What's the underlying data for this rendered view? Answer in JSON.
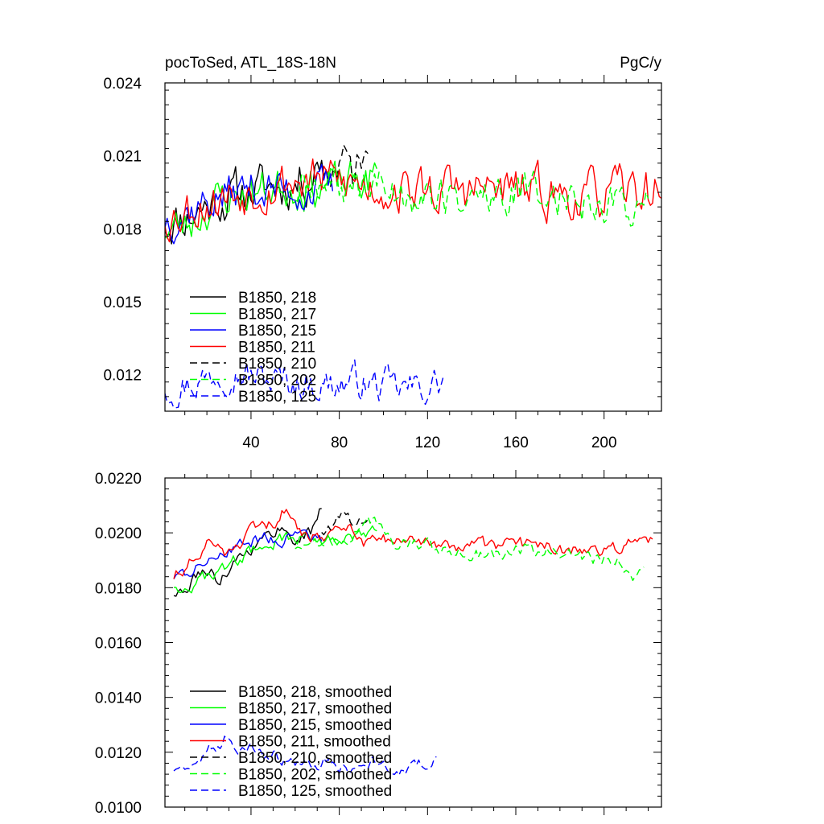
{
  "header": {
    "title_left": "pocToSed, ATL_18S-18N",
    "title_right": "PgC/y"
  },
  "chart_data": [
    {
      "type": "line",
      "title": "pocToSed, ATL_18S-18N",
      "units_label": "PgC/y",
      "xlim": [
        1,
        226
      ],
      "ylim": [
        0.0105,
        0.024
      ],
      "x_ticks": [
        40,
        80,
        120,
        160,
        200
      ],
      "x_tick_labels": [
        "40",
        "80",
        "120",
        "160",
        "200"
      ],
      "y_ticks": [
        0.012,
        0.015,
        0.018,
        0.021,
        0.024
      ],
      "y_tick_labels": [
        "0.012",
        "0.015",
        "0.018",
        "0.021",
        "0.024"
      ],
      "grid": false,
      "legend_position": "bottom-left",
      "series": [
        {
          "name": "B1850, 218",
          "color": "#000000",
          "dash": "solid",
          "x_start": 1,
          "x_end": 75,
          "anchors": [
            [
              1,
              0.0183
            ],
            [
              10,
              0.0185
            ],
            [
              25,
              0.0192
            ],
            [
              40,
              0.0196
            ],
            [
              55,
              0.0198
            ],
            [
              65,
              0.02
            ],
            [
              72,
              0.021
            ],
            [
              75,
              0.0203
            ]
          ],
          "noise": 0.0008,
          "seed": 11
        },
        {
          "name": "B1850, 217",
          "color": "#00ff00",
          "dash": "solid",
          "x_start": 1,
          "x_end": 97,
          "anchors": [
            [
              1,
              0.018
            ],
            [
              10,
              0.0181
            ],
            [
              25,
              0.0192
            ],
            [
              40,
              0.0195
            ],
            [
              55,
              0.0198
            ],
            [
              70,
              0.0197
            ],
            [
              85,
              0.0199
            ],
            [
              97,
              0.0201
            ]
          ],
          "noise": 0.0007,
          "seed": 23
        },
        {
          "name": "B1850, 215",
          "color": "#0000ff",
          "dash": "solid",
          "x_start": 1,
          "x_end": 77,
          "anchors": [
            [
              1,
              0.0184
            ],
            [
              10,
              0.0187
            ],
            [
              25,
              0.0193
            ],
            [
              40,
              0.0197
            ],
            [
              55,
              0.0196
            ],
            [
              70,
              0.0196
            ],
            [
              77,
              0.0197
            ]
          ],
          "noise": 0.0007,
          "seed": 37
        },
        {
          "name": "B1850, 211",
          "color": "#ff0000",
          "dash": "solid",
          "x_start": 1,
          "x_end": 226,
          "anchors": [
            [
              1,
              0.0185
            ],
            [
              15,
              0.019
            ],
            [
              30,
              0.0194
            ],
            [
              45,
              0.0198
            ],
            [
              60,
              0.02
            ],
            [
              75,
              0.02
            ],
            [
              90,
              0.0198
            ],
            [
              110,
              0.0196
            ],
            [
              130,
              0.0196
            ],
            [
              150,
              0.0196
            ],
            [
              170,
              0.0195
            ],
            [
              190,
              0.0193
            ],
            [
              210,
              0.0195
            ],
            [
              226,
              0.0196
            ]
          ],
          "noise": 0.0008,
          "seed": 53
        },
        {
          "name": "B1850, 210",
          "color": "#000000",
          "dash": "dashed",
          "x_start": 76,
          "x_end": 93,
          "anchors": [
            [
              76,
              0.0201
            ],
            [
              80,
              0.0206
            ],
            [
              86,
              0.0203
            ],
            [
              93,
              0.0212
            ]
          ],
          "noise": 0.0008,
          "seed": 71
        },
        {
          "name": "B1850, 202",
          "color": "#00ff00",
          "dash": "dashed",
          "x_start": 60,
          "x_end": 220,
          "anchors": [
            [
              60,
              0.0195
            ],
            [
              75,
              0.0197
            ],
            [
              90,
              0.0198
            ],
            [
              110,
              0.0195
            ],
            [
              130,
              0.0192
            ],
            [
              150,
              0.0193
            ],
            [
              170,
              0.0195
            ],
            [
              190,
              0.0192
            ],
            [
              210,
              0.019
            ],
            [
              220,
              0.0191
            ]
          ],
          "noise": 0.0007,
          "seed": 89
        },
        {
          "name": "B1850, 125",
          "color": "#0000ff",
          "dash": "dashed",
          "x_start": 1,
          "x_end": 127,
          "anchors": [
            [
              1,
              0.0115
            ],
            [
              15,
              0.0117
            ],
            [
              30,
              0.0123
            ],
            [
              45,
              0.0118
            ],
            [
              60,
              0.0117
            ],
            [
              75,
              0.0116
            ],
            [
              90,
              0.0117
            ],
            [
              105,
              0.0114
            ],
            [
              115,
              0.0114
            ],
            [
              127,
              0.0117
            ]
          ],
          "noise": 0.0006,
          "seed": 97
        }
      ]
    },
    {
      "type": "line",
      "xlim": [
        1,
        226
      ],
      "ylim": [
        0.01,
        0.022
      ],
      "x_ticks": [
        40,
        80,
        120,
        160,
        200
      ],
      "x_tick_labels": [],
      "y_ticks": [
        0.01,
        0.012,
        0.014,
        0.016,
        0.018,
        0.02,
        0.022
      ],
      "y_tick_labels": [
        "0.0100",
        "0.0120",
        "0.0140",
        "0.0160",
        "0.0180",
        "0.0200",
        "0.0220"
      ],
      "grid": false,
      "legend_position": "bottom-left",
      "series": [
        {
          "name": "B1850, 218, smoothed",
          "color": "#000000",
          "dash": "solid",
          "x_start": 5,
          "x_end": 72,
          "anchors": [
            [
              5,
              0.0178
            ],
            [
              10,
              0.0178
            ],
            [
              18,
              0.0187
            ],
            [
              25,
              0.0183
            ],
            [
              35,
              0.0192
            ],
            [
              45,
              0.0197
            ],
            [
              52,
              0.0202
            ],
            [
              60,
              0.0198
            ],
            [
              67,
              0.02
            ],
            [
              72,
              0.0209
            ]
          ],
          "noise": 0.0002,
          "seed": 111
        },
        {
          "name": "B1850, 217, smoothed",
          "color": "#00ff00",
          "dash": "solid",
          "x_start": 5,
          "x_end": 97,
          "anchors": [
            [
              5,
              0.0181
            ],
            [
              12,
              0.018
            ],
            [
              25,
              0.0186
            ],
            [
              40,
              0.0193
            ],
            [
              55,
              0.0198
            ],
            [
              70,
              0.0198
            ],
            [
              80,
              0.0198
            ],
            [
              90,
              0.0198
            ],
            [
              97,
              0.0201
            ]
          ],
          "noise": 0.0002,
          "seed": 123
        },
        {
          "name": "B1850, 215, smoothed",
          "color": "#0000ff",
          "dash": "solid",
          "x_start": 5,
          "x_end": 72,
          "anchors": [
            [
              5,
              0.0184
            ],
            [
              15,
              0.0187
            ],
            [
              25,
              0.0193
            ],
            [
              35,
              0.0196
            ],
            [
              45,
              0.0198
            ],
            [
              55,
              0.0198
            ],
            [
              65,
              0.0198
            ],
            [
              72,
              0.0197
            ]
          ],
          "noise": 0.0002,
          "seed": 137
        },
        {
          "name": "B1850, 211, smoothed",
          "color": "#ff0000",
          "dash": "solid",
          "x_start": 5,
          "x_end": 222,
          "anchors": [
            [
              5,
              0.0184
            ],
            [
              12,
              0.0189
            ],
            [
              20,
              0.0196
            ],
            [
              30,
              0.0192
            ],
            [
              40,
              0.02
            ],
            [
              50,
              0.0204
            ],
            [
              55,
              0.0208
            ],
            [
              65,
              0.0198
            ],
            [
              75,
              0.02
            ],
            [
              83,
              0.0203
            ],
            [
              90,
              0.0196
            ],
            [
              100,
              0.0197
            ],
            [
              120,
              0.0196
            ],
            [
              140,
              0.0195
            ],
            [
              160,
              0.0196
            ],
            [
              180,
              0.0194
            ],
            [
              200,
              0.0193
            ],
            [
              210,
              0.0196
            ],
            [
              222,
              0.0198
            ]
          ],
          "noise": 0.0002,
          "seed": 151
        },
        {
          "name": "B1850, 210, smoothed",
          "color": "#000000",
          "dash": "dashed",
          "x_start": 72,
          "x_end": 93,
          "anchors": [
            [
              72,
              0.0201
            ],
            [
              78,
              0.0204
            ],
            [
              83,
              0.0206
            ],
            [
              88,
              0.0203
            ],
            [
              93,
              0.0207
            ]
          ],
          "noise": 0.0002,
          "seed": 163
        },
        {
          "name": "B1850, 202, smoothed",
          "color": "#00ff00",
          "dash": "dashed",
          "x_start": 60,
          "x_end": 218,
          "anchors": [
            [
              60,
              0.0195
            ],
            [
              75,
              0.0197
            ],
            [
              85,
              0.0199
            ],
            [
              95,
              0.0204
            ],
            [
              105,
              0.0197
            ],
            [
              120,
              0.0195
            ],
            [
              140,
              0.0192
            ],
            [
              160,
              0.0194
            ],
            [
              180,
              0.0193
            ],
            [
              195,
              0.019
            ],
            [
              205,
              0.0191
            ],
            [
              213,
              0.0185
            ],
            [
              218,
              0.0188
            ]
          ],
          "noise": 0.0002,
          "seed": 179
        },
        {
          "name": "B1850, 125, smoothed",
          "color": "#0000ff",
          "dash": "dashed",
          "x_start": 5,
          "x_end": 124,
          "anchors": [
            [
              5,
              0.0114
            ],
            [
              12,
              0.0113
            ],
            [
              20,
              0.012
            ],
            [
              28,
              0.0125
            ],
            [
              35,
              0.0122
            ],
            [
              45,
              0.0121
            ],
            [
              55,
              0.0117
            ],
            [
              65,
              0.0116
            ],
            [
              75,
              0.0117
            ],
            [
              85,
              0.0114
            ],
            [
              95,
              0.0117
            ],
            [
              105,
              0.0113
            ],
            [
              115,
              0.0116
            ],
            [
              124,
              0.0117
            ]
          ],
          "noise": 0.0002,
          "seed": 191
        }
      ]
    }
  ]
}
